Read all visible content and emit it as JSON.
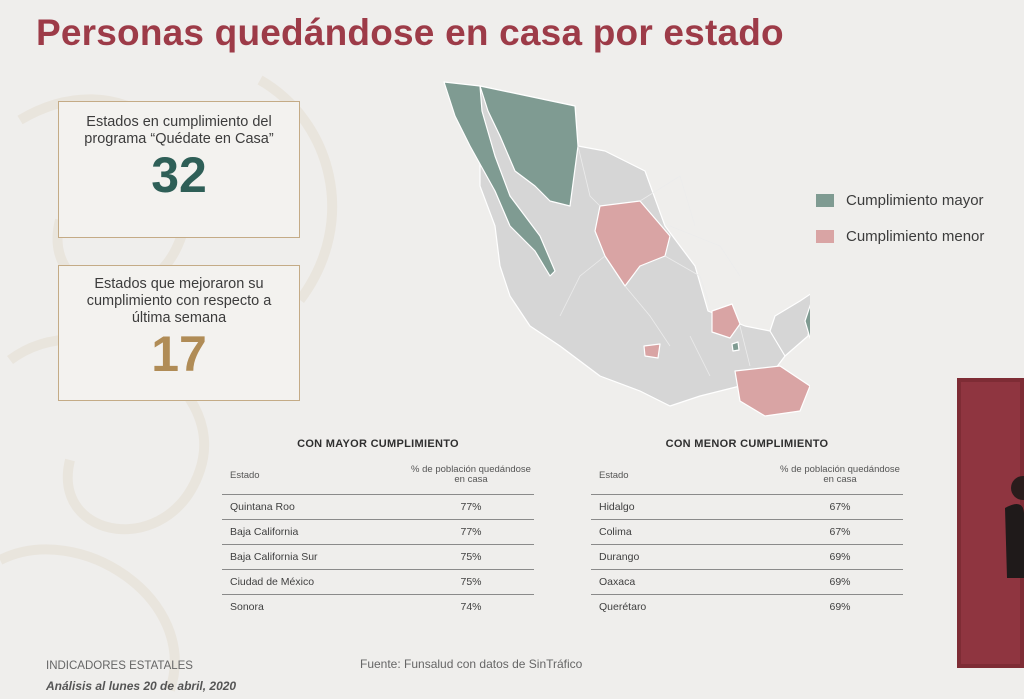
{
  "title": "Personas quedándose en casa por estado",
  "stats": [
    {
      "label": "Estados en cumplimiento del programa “Quédate en Casa”",
      "value": "32"
    },
    {
      "label": "Estados que mejoraron su cumplimiento con respecto a última semana",
      "value": "17"
    }
  ],
  "legend": [
    {
      "label": "Cumplimiento mayor",
      "color": "#7f9b92"
    },
    {
      "label": "Cumplimiento menor",
      "color": "#d9a4a4"
    }
  ],
  "tables": {
    "high": {
      "title": "CON MAYOR CUMPLIMIENTO",
      "col_state": "Estado",
      "col_pct": "% de población quedándose en casa",
      "rows": [
        {
          "state": "Quintana Roo",
          "pct": "77%"
        },
        {
          "state": "Baja California",
          "pct": "77%"
        },
        {
          "state": "Baja California Sur",
          "pct": "75%"
        },
        {
          "state": "Ciudad de México",
          "pct": "75%"
        },
        {
          "state": "Sonora",
          "pct": "74%"
        }
      ]
    },
    "low": {
      "title": "CON MENOR CUMPLIMIENTO",
      "col_state": "Estado",
      "col_pct": "% de población quedándose en casa",
      "rows": [
        {
          "state": "Hidalgo",
          "pct": "67%"
        },
        {
          "state": "Colima",
          "pct": "67%"
        },
        {
          "state": "Durango",
          "pct": "69%"
        },
        {
          "state": "Oaxaca",
          "pct": "69%"
        },
        {
          "state": "Querétaro",
          "pct": "69%"
        }
      ]
    }
  },
  "footer": {
    "section": "INDICADORES ESTATALES",
    "date": "Análisis al lunes 20 de abril, 2020",
    "source": "Fuente: Funsalud con datos de SinTráfico"
  }
}
